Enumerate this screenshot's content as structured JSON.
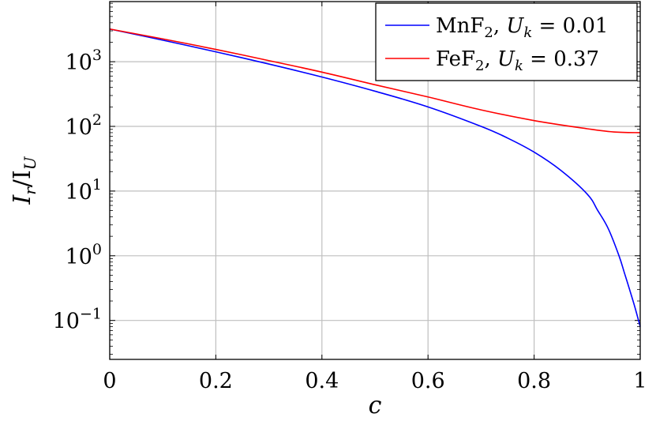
{
  "chart_data": {
    "type": "line",
    "title": "",
    "xlabel": "c",
    "ylabel": "I_r/I_U",
    "xlim": [
      0,
      1
    ],
    "ylim": [
      0.025,
      8500
    ],
    "yscale": "log",
    "grid": true,
    "legend_position": "top-right",
    "x_ticks": [
      "0",
      "0.2",
      "0.4",
      "0.6",
      "0.8",
      "1"
    ],
    "y_ticks": [
      {
        "base": "10",
        "exp": "−1",
        "value": 0.1
      },
      {
        "base": "10",
        "exp": "0",
        "value": 1
      },
      {
        "base": "10",
        "exp": "1",
        "value": 10
      },
      {
        "base": "10",
        "exp": "2",
        "value": 100
      },
      {
        "base": "10",
        "exp": "3",
        "value": 1000
      }
    ],
    "series": [
      {
        "name": "MnF2, Uk = 0.01",
        "legend": {
          "material": "MnF",
          "material_sub": "2",
          "param": "U",
          "param_sub": "k",
          "value": " = 0.01"
        },
        "color": "#0000ff",
        "x": [
          0,
          0.1,
          0.2,
          0.3,
          0.4,
          0.5,
          0.6,
          0.7,
          0.75,
          0.8,
          0.85,
          0.9,
          0.92,
          0.94,
          0.96,
          0.97,
          0.98,
          0.99,
          1.0
        ],
        "y": [
          3200,
          2150,
          1420,
          920,
          580,
          350,
          200,
          100,
          66,
          40,
          21,
          9,
          5,
          2.6,
          1.0,
          0.55,
          0.3,
          0.16,
          0.08
        ]
      },
      {
        "name": "FeF2, Uk = 0.37",
        "legend": {
          "material": "FeF",
          "material_sub": "2",
          "param": "U",
          "param_sub": "k",
          "value": " = 0.37"
        },
        "color": "#ff0000",
        "x": [
          0,
          0.1,
          0.2,
          0.3,
          0.4,
          0.5,
          0.6,
          0.7,
          0.8,
          0.9,
          0.95,
          1.0
        ],
        "y": [
          3200,
          2250,
          1550,
          1040,
          690,
          440,
          285,
          180,
          123,
          92,
          82,
          80
        ]
      }
    ]
  },
  "colors": {
    "grid": "#bfbfbf",
    "axis": "#000000",
    "series_1": "#0000ff",
    "series_2": "#ff0000"
  }
}
